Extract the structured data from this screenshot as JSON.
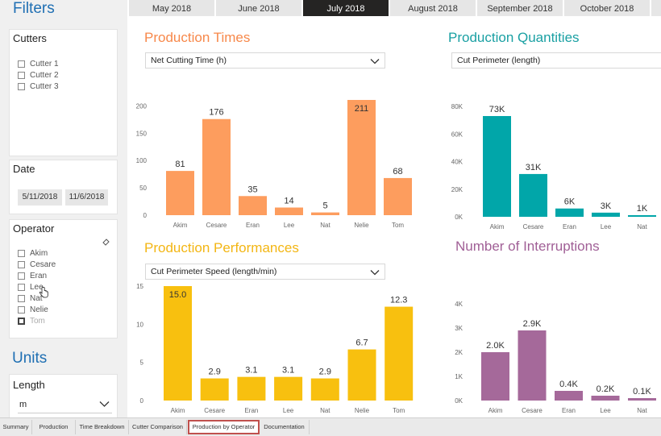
{
  "sidebar": {
    "filters_title": "Filters",
    "cutters": {
      "title": "Cutters",
      "items": [
        {
          "label": "Cutter 1"
        },
        {
          "label": "Cutter 2"
        },
        {
          "label": "Cutter 3"
        }
      ]
    },
    "date": {
      "title": "Date",
      "start": "5/11/2018",
      "end": "11/6/2018"
    },
    "operator": {
      "title": "Operator",
      "items": [
        {
          "label": "Akim"
        },
        {
          "label": "Cesare"
        },
        {
          "label": "Eran"
        },
        {
          "label": "Lee"
        },
        {
          "label": "Nat"
        },
        {
          "label": "Nelie"
        },
        {
          "label": "Tom"
        }
      ]
    },
    "units_title": "Units",
    "length": {
      "title": "Length",
      "value": "m"
    }
  },
  "months": [
    {
      "label": "May 2018",
      "active": false
    },
    {
      "label": "June 2018",
      "active": false
    },
    {
      "label": "July 2018",
      "active": true
    },
    {
      "label": "August 2018",
      "active": false
    },
    {
      "label": "September 2018",
      "active": false
    },
    {
      "label": "October 2018",
      "active": false
    }
  ],
  "bottom_tabs": [
    {
      "label": "Summary"
    },
    {
      "label": "Production"
    },
    {
      "label": "Time Breakdown"
    },
    {
      "label": "Cutter Comparison"
    },
    {
      "label": "Production by Operator",
      "active": true
    },
    {
      "label": "Documentation"
    }
  ],
  "colors": {
    "orange": "#fd9d5e",
    "orange_title": "#f7884a",
    "teal": "#01a6a9",
    "teal_title": "#1aa0a3",
    "yellow": "#f8c00f",
    "yellow_title": "#f3b614",
    "purple": "#a5699a",
    "purple_title": "#a05f96",
    "blue_title": "#1f6fb3"
  },
  "chart_data": [
    {
      "id": "times",
      "type": "bar",
      "title": "Production Times",
      "dropdown": "Net Cutting Time (h)",
      "categories": [
        "Akim",
        "Cesare",
        "Eran",
        "Lee",
        "Nat",
        "Nelie",
        "Tom"
      ],
      "values": [
        81,
        176,
        35,
        14,
        5,
        211,
        68
      ],
      "labels": [
        "81",
        "176",
        "35",
        "14",
        "5",
        "211",
        "68"
      ],
      "ylim": [
        0,
        211
      ],
      "yticks": [
        0,
        50,
        100,
        150,
        200
      ],
      "ytick_labels": [
        "0",
        "50",
        "100",
        "150",
        "200"
      ],
      "label_inside_top": [
        false,
        false,
        false,
        false,
        false,
        true,
        false
      ]
    },
    {
      "id": "quantities",
      "type": "bar",
      "title": "Production Quantities",
      "dropdown": "Cut Perimeter (length)",
      "categories": [
        "Akim",
        "Cesare",
        "Eran",
        "Lee",
        "Nat"
      ],
      "values": [
        73000,
        31000,
        6000,
        3000,
        1000
      ],
      "labels": [
        "73K",
        "31K",
        "6K",
        "3K",
        "1K"
      ],
      "ylim": [
        0,
        80000
      ],
      "yticks": [
        0,
        20000,
        40000,
        60000,
        80000
      ],
      "ytick_labels": [
        "0K",
        "20K",
        "40K",
        "60K",
        "80K"
      ],
      "label_inside_top": [
        false,
        false,
        false,
        false,
        false
      ]
    },
    {
      "id": "performances",
      "type": "bar",
      "title": "Production Performances",
      "dropdown": "Cut Perimeter Speed (length/min)",
      "categories": [
        "Akim",
        "Cesare",
        "Eran",
        "Lee",
        "Nat",
        "Nelie",
        "Tom"
      ],
      "values": [
        15.0,
        2.9,
        3.1,
        3.1,
        2.9,
        6.7,
        12.3
      ],
      "labels": [
        "15.0",
        "2.9",
        "3.1",
        "3.1",
        "2.9",
        "6.7",
        "12.3"
      ],
      "ylim": [
        0,
        15
      ],
      "yticks": [
        0,
        5,
        10,
        15
      ],
      "ytick_labels": [
        "0",
        "5",
        "10",
        "15"
      ],
      "label_inside_top": [
        true,
        false,
        false,
        false,
        false,
        false,
        false
      ]
    },
    {
      "id": "interruptions",
      "type": "bar",
      "title": "Number of Interruptions",
      "categories": [
        "Akim",
        "Cesare",
        "Eran",
        "Lee",
        "Nat"
      ],
      "values": [
        2000,
        2900,
        400,
        200,
        100
      ],
      "labels": [
        "2.0K",
        "2.9K",
        "0.4K",
        "0.2K",
        "0.1K"
      ],
      "ylim": [
        0,
        4000
      ],
      "yticks": [
        0,
        1000,
        2000,
        3000,
        4000
      ],
      "ytick_labels": [
        "0K",
        "1K",
        "2K",
        "3K",
        "4K"
      ],
      "label_inside_top": [
        false,
        false,
        false,
        false,
        false
      ]
    }
  ]
}
